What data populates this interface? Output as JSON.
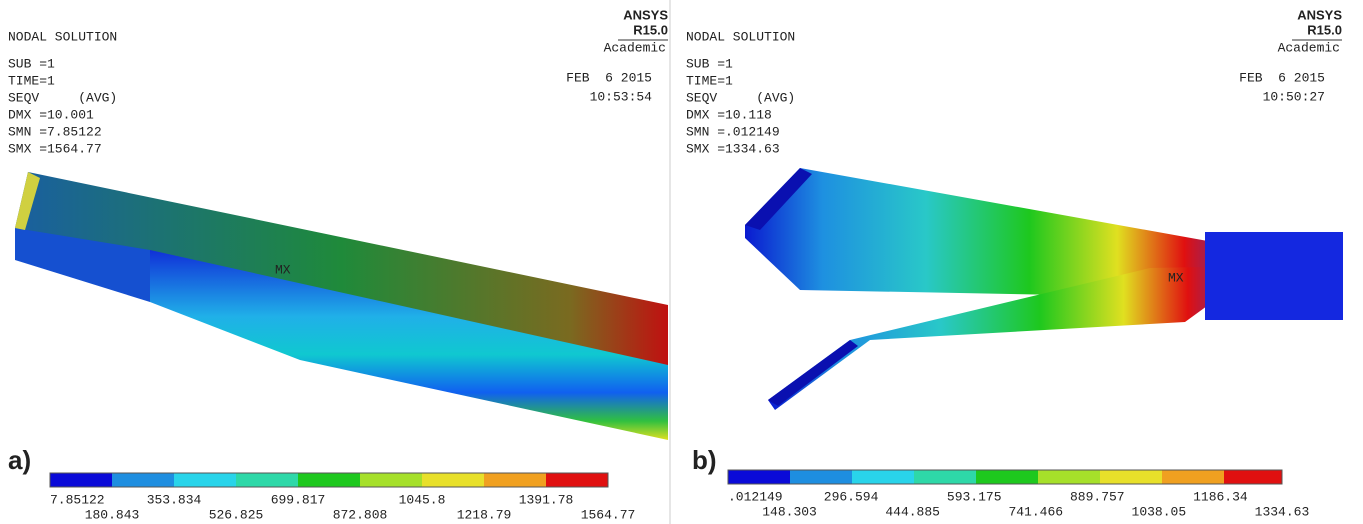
{
  "panels": [
    {
      "label": "a)",
      "logo": {
        "name": "ANSYS",
        "version": "R15.0",
        "license": "Academic"
      },
      "header": [
        "NODAL SOLUTION",
        "SUB =1",
        "TIME=1",
        "SEQV     (AVG)",
        "DMX =10.001",
        "SMN =7.85122",
        "SMX =1564.77"
      ],
      "date": "FEB  6 2015",
      "time": "10:53:54",
      "marker": "MX",
      "legend_labels": [
        "7.85122",
        "180.843",
        "353.834",
        "526.825",
        "699.817",
        "872.808",
        "1045.8",
        "1218.79",
        "1391.78",
        "1564.77"
      ]
    },
    {
      "label": "b)",
      "logo": {
        "name": "ANSYS",
        "version": "R15.0",
        "license": "Academic"
      },
      "header": [
        "NODAL SOLUTION",
        "SUB =1",
        "TIME=1",
        "SEQV     (AVG)",
        "DMX =10.118",
        "SMN =.012149",
        "SMX =1334.63"
      ],
      "date": "FEB  6 2015",
      "time": "10:50:27",
      "marker": "MX",
      "legend_labels": [
        ".012149",
        "148.303",
        "296.594",
        "444.885",
        "593.175",
        "741.466",
        "889.757",
        "1038.05",
        "1186.34",
        "1334.63"
      ]
    }
  ]
}
